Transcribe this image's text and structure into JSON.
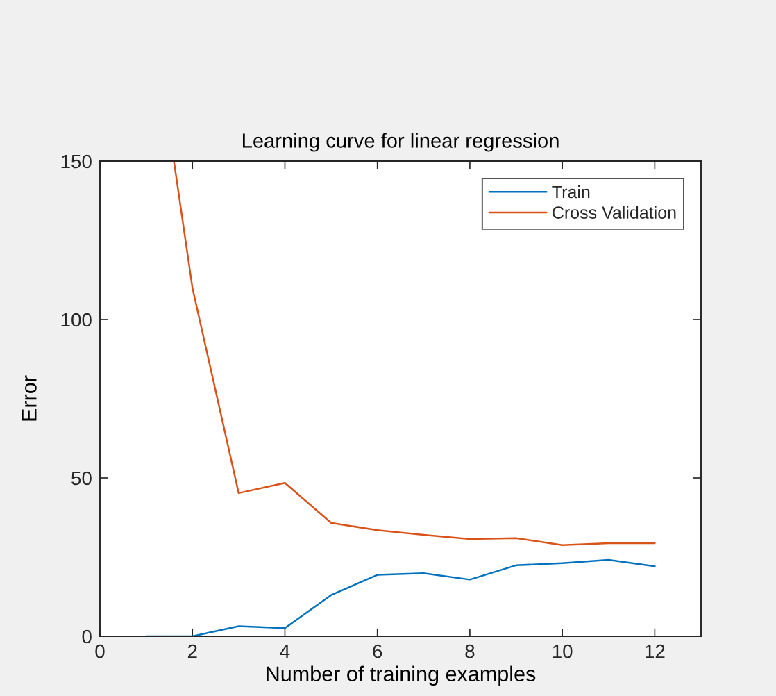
{
  "chart_data": {
    "type": "line",
    "title": "Learning curve for linear regression",
    "xlabel": "Number of training examples",
    "ylabel": "Error",
    "series": [
      {
        "name": "Train",
        "color": "#0072bd",
        "x": [
          1,
          2,
          3,
          4,
          5,
          6,
          7,
          8,
          9,
          10,
          11,
          12
        ],
        "values": [
          0,
          0,
          3.2,
          2.6,
          13,
          19.4,
          19.9,
          17.9,
          22.4,
          23.1,
          24.1,
          22.1
        ]
      },
      {
        "name": "Cross Validation",
        "color": "#d95319",
        "x": [
          1.6,
          2,
          3,
          4,
          5,
          6,
          7,
          8,
          9,
          10,
          11,
          12
        ],
        "values": [
          150,
          110,
          45.2,
          48.4,
          35.8,
          33.5,
          32,
          30.7,
          31,
          28.8,
          29.4,
          29.4
        ]
      }
    ],
    "xlim": [
      0,
      13
    ],
    "xticks": [
      0,
      2,
      4,
      6,
      8,
      10,
      12
    ],
    "ylim": [
      0,
      150
    ],
    "yticks": [
      0,
      50,
      100,
      150
    ],
    "legend": "top right"
  }
}
